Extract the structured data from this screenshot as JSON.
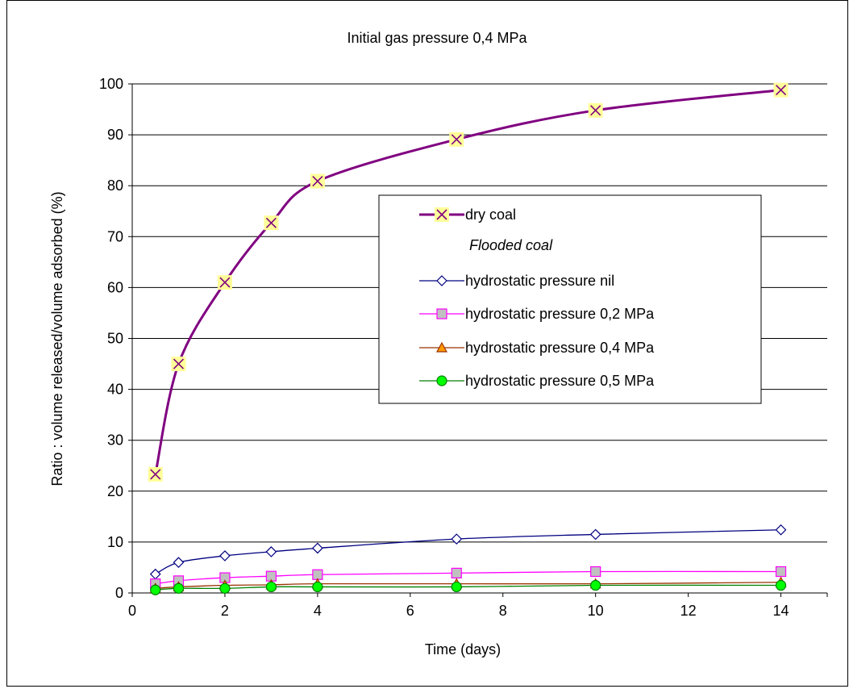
{
  "chart_data": {
    "type": "line",
    "title": "Initial gas pressure 0,4 MPa",
    "xlabel": "Time (days)",
    "ylabel": "Ratio : volume released/volume adsorbed (%)",
    "xlim": [
      0,
      15
    ],
    "ylim": [
      0,
      100
    ],
    "xticks": [
      "0",
      "2",
      "4",
      "6",
      "8",
      "10",
      "12",
      "14"
    ],
    "yticks": [
      "0",
      "10",
      "20",
      "30",
      "40",
      "50",
      "60",
      "70",
      "80",
      "90",
      "100"
    ],
    "grid": "horizontal",
    "legend_placement": "center-right",
    "legend_group_heading": "Flooded coal",
    "series": [
      {
        "name": "dry coal",
        "marker": "x-on-square",
        "color": "#800080",
        "marker_fill": "#ffff99",
        "x": [
          0.5,
          1,
          2,
          3,
          4,
          7,
          10,
          14
        ],
        "y": [
          23.3,
          45,
          61,
          72.7,
          80.9,
          89.1,
          94.8,
          98.8
        ]
      },
      {
        "name": "hydrostatic pressure nil",
        "marker": "diamond",
        "color": "#000080",
        "marker_fill": "#ffffff",
        "x": [
          0.5,
          1,
          2,
          3,
          4,
          7,
          10,
          14
        ],
        "y": [
          3.7,
          6,
          7.3,
          8.1,
          8.8,
          10.6,
          11.5,
          12.4
        ]
      },
      {
        "name": "hydrostatic pressure 0,2 MPa",
        "marker": "square",
        "color": "#ff00ff",
        "marker_fill": "#c0c0c0",
        "x": [
          0.5,
          1,
          2,
          3,
          4,
          7,
          10,
          14
        ],
        "y": [
          1.8,
          2.4,
          3,
          3.3,
          3.6,
          3.9,
          4.2,
          4.2
        ]
      },
      {
        "name": "hydrostatic pressure 0,4 MPa",
        "marker": "triangle",
        "color": "#993300",
        "marker_fill": "#ff9900",
        "x": [
          0.5,
          1,
          2,
          3,
          4,
          7,
          10,
          14
        ],
        "y": [
          0.9,
          1.2,
          1.5,
          1.6,
          1.8,
          1.8,
          1.8,
          2.1
        ]
      },
      {
        "name": "hydrostatic pressure 0,5 MPa",
        "marker": "circle",
        "color": "#008000",
        "marker_fill": "#00ff00",
        "x": [
          0.5,
          1,
          2,
          3,
          4,
          7,
          10,
          14
        ],
        "y": [
          0.6,
          0.9,
          0.9,
          1.2,
          1.2,
          1.2,
          1.5,
          1.5
        ]
      }
    ]
  }
}
